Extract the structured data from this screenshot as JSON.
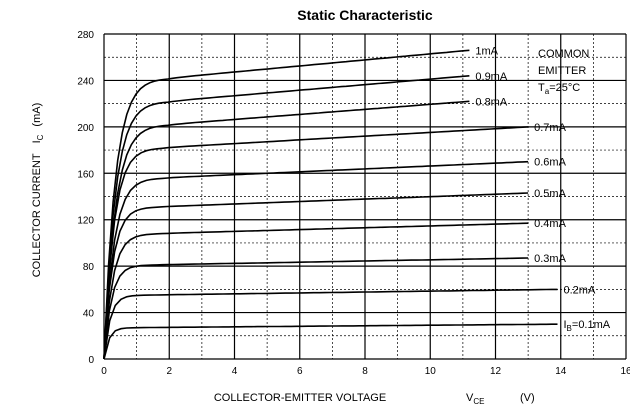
{
  "chart_data": {
    "type": "line",
    "title": "Static Characteristic",
    "xlabel": "COLLECTOR-EMITTER VOLTAGE",
    "xlabel_symbol": "V",
    "xlabel_sub": "CE",
    "xlabel_unit": "(V)",
    "ylabel": "COLLECTOR CURRENT",
    "ylabel_symbol": "I",
    "ylabel_sub": "C",
    "ylabel_unit": "(mA)",
    "xlim": [
      0,
      16
    ],
    "ylim": [
      0,
      280
    ],
    "xticks": [
      0,
      2,
      4,
      6,
      8,
      10,
      12,
      14,
      16
    ],
    "yticks": [
      0,
      40,
      80,
      120,
      160,
      200,
      240,
      280
    ],
    "grid": true,
    "annotation": {
      "line1": "COMMON",
      "line2": "EMITTER",
      "line3_prefix": "T",
      "line3_sub": "a",
      "line3_suffix": "=25°C"
    },
    "series": [
      {
        "name": "1mA",
        "label_prefix": "",
        "label_sub": "",
        "label_value": "1mA",
        "knee": 0.9,
        "y_sat": 242,
        "x_end": 11.2,
        "y_end": 266
      },
      {
        "name": "0.9mA",
        "label_prefix": "",
        "label_sub": "",
        "label_value": "0.9mA",
        "knee": 0.9,
        "y_sat": 222,
        "x_end": 11.2,
        "y_end": 244
      },
      {
        "name": "0.8mA",
        "label_prefix": "",
        "label_sub": "",
        "label_value": "0.8mA",
        "knee": 0.9,
        "y_sat": 202,
        "x_end": 11.2,
        "y_end": 222
      },
      {
        "name": "0.7mA",
        "label_prefix": "",
        "label_sub": "",
        "label_value": "0.7mA",
        "knee": 0.8,
        "y_sat": 182,
        "x_end": 13.0,
        "y_end": 200
      },
      {
        "name": "0.6mA",
        "label_prefix": "",
        "label_sub": "",
        "label_value": "0.6mA",
        "knee": 0.8,
        "y_sat": 156,
        "x_end": 13.0,
        "y_end": 170
      },
      {
        "name": "0.5mA",
        "label_prefix": "",
        "label_sub": "",
        "label_value": "0.5mA",
        "knee": 0.7,
        "y_sat": 131,
        "x_end": 13.0,
        "y_end": 143
      },
      {
        "name": "0.4mA",
        "label_prefix": "",
        "label_sub": "",
        "label_value": "0.4mA",
        "knee": 0.7,
        "y_sat": 108,
        "x_end": 13.0,
        "y_end": 117
      },
      {
        "name": "0.3mA",
        "label_prefix": "",
        "label_sub": "",
        "label_value": "0.3mA",
        "knee": 0.6,
        "y_sat": 81,
        "x_end": 13.0,
        "y_end": 87
      },
      {
        "name": "0.2mA",
        "label_prefix": "",
        "label_sub": "",
        "label_value": "0.2mA",
        "knee": 0.5,
        "y_sat": 55,
        "x_end": 13.9,
        "y_end": 60
      },
      {
        "name": "IB=0.1mA",
        "label_prefix": "I",
        "label_sub": "B",
        "label_value": "=0.1mA",
        "knee": 0.4,
        "y_sat": 27,
        "x_end": 13.9,
        "y_end": 30
      }
    ]
  }
}
